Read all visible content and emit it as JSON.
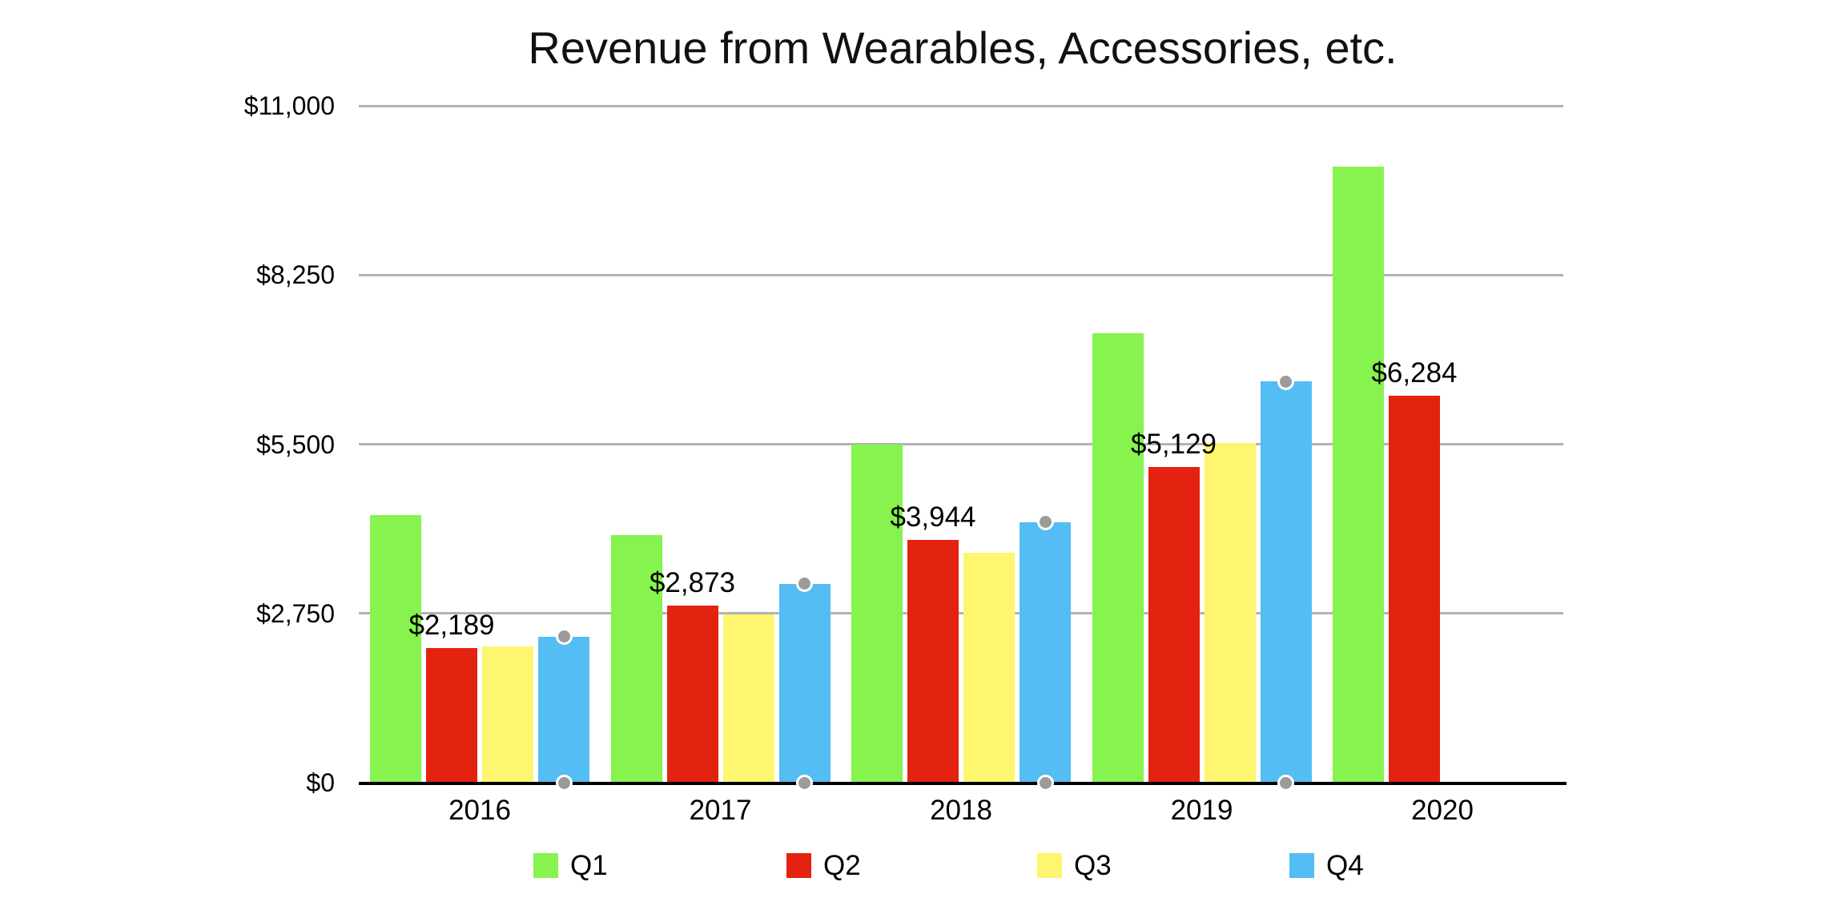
{
  "chart_data": {
    "type": "bar",
    "title": "Revenue from Wearables, Accessories, etc.",
    "xlabel": "",
    "ylabel": "",
    "categories": [
      "2016",
      "2017",
      "2018",
      "2019",
      "2020"
    ],
    "series": [
      {
        "name": "Q1",
        "color": "#87F34E",
        "values": [
          4351,
          4024,
          5489,
          7308,
          10010
        ]
      },
      {
        "name": "Q2",
        "color": "#E3220F",
        "values": [
          2189,
          2873,
          3944,
          5129,
          6284
        ],
        "data_labels": [
          "$2,189",
          "$2,873",
          "$3,944",
          "$5,129",
          "$6,284"
        ]
      },
      {
        "name": "Q3",
        "color": "#FDF66E",
        "values": [
          2219,
          2735,
          3740,
          5525,
          null
        ]
      },
      {
        "name": "Q4",
        "color": "#54BDF4",
        "values": [
          2373,
          3231,
          4234,
          6520,
          null
        ],
        "selected": true
      }
    ],
    "ylim": [
      0,
      11000
    ],
    "yticks": [
      {
        "value": 0,
        "label": "$0"
      },
      {
        "value": 2750,
        "label": "$2,750"
      },
      {
        "value": 5500,
        "label": "$5,500"
      },
      {
        "value": 8250,
        "label": "$8,250"
      },
      {
        "value": 11000,
        "label": "$11,000"
      }
    ],
    "grid": "horizontal",
    "gridline_color": "#B3B3B3",
    "axis_color": "#000000",
    "legend_position": "bottom",
    "legend": [
      {
        "label": "Q1",
        "color": "#87F34E"
      },
      {
        "label": "Q2",
        "color": "#E3220F"
      },
      {
        "label": "Q3",
        "color": "#FDF66E"
      },
      {
        "label": "Q4",
        "color": "#54BDF4"
      }
    ]
  },
  "selection": {
    "selected_series": "Q4",
    "handle_color": "#9B9B9B",
    "handle_positions": "top-center and bottom-center of each selected bar"
  }
}
